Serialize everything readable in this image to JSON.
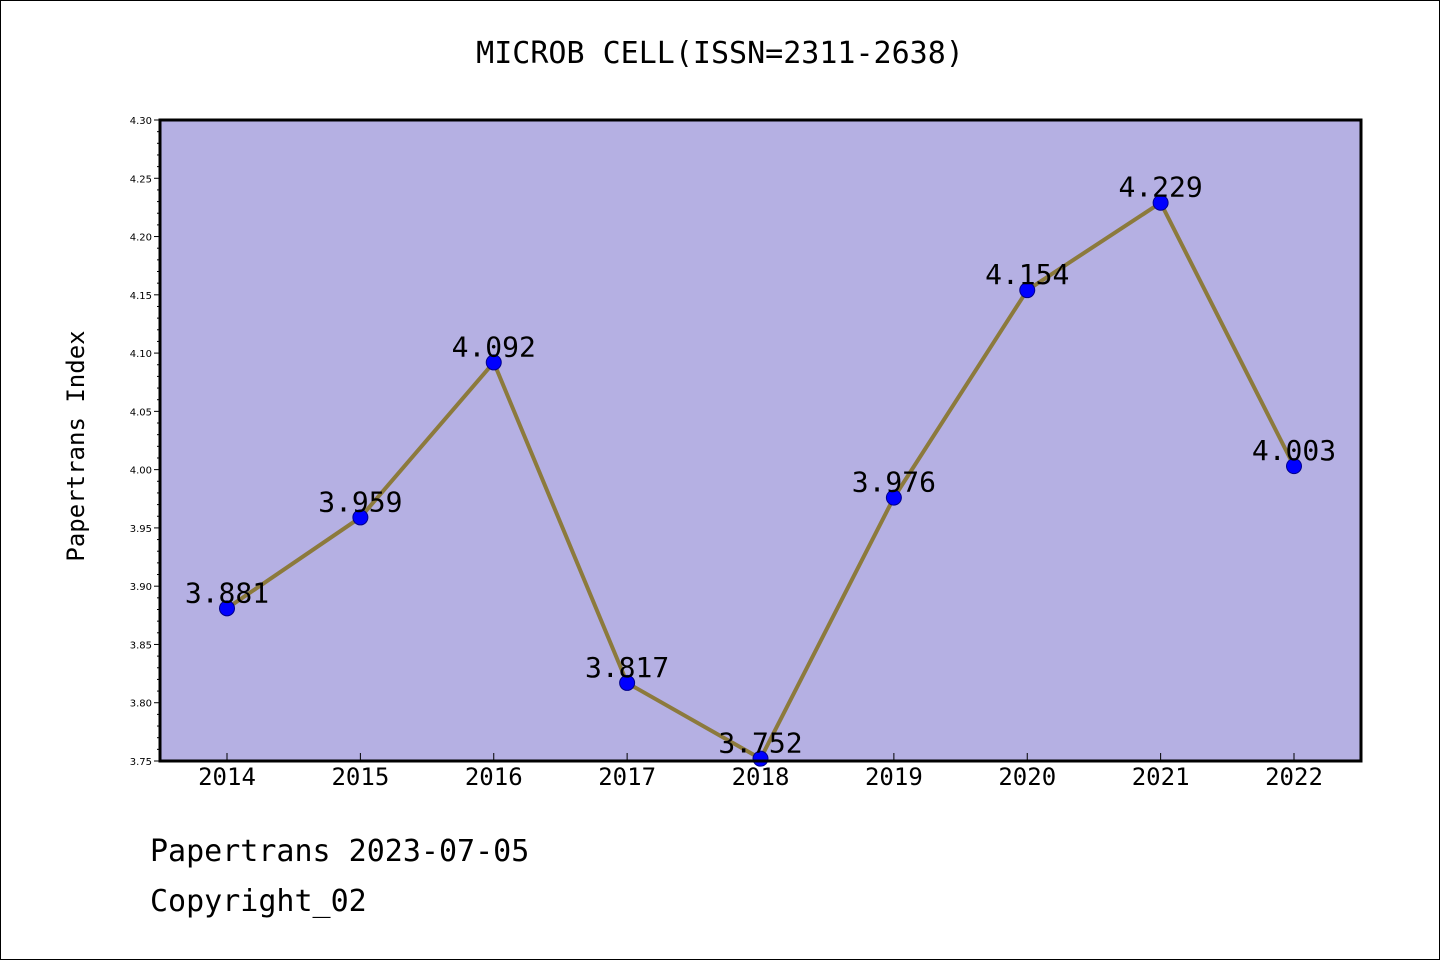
{
  "chart_data": {
    "type": "line",
    "title": "MICROB CELL(ISSN=2311-2638)",
    "ylabel": "Papertrans Index",
    "xlabel": "",
    "categories": [
      "2014",
      "2015",
      "2016",
      "2017",
      "2018",
      "2019",
      "2020",
      "2021",
      "2022"
    ],
    "values": [
      3.881,
      3.959,
      4.092,
      3.817,
      3.752,
      3.976,
      4.154,
      4.229,
      4.003
    ],
    "data_labels": [
      "3.881",
      "3.959",
      "4.092",
      "3.817",
      "3.752",
      "3.976",
      "4.154",
      "4.229",
      "4.003"
    ],
    "ylim": [
      3.75,
      4.3
    ],
    "yticks": [
      "3.75",
      "3.80",
      "3.85",
      "3.90",
      "3.95",
      "4.00",
      "4.05",
      "4.10",
      "4.15",
      "4.20",
      "4.25",
      "4.30"
    ],
    "grid": false,
    "legend": "none",
    "colors": {
      "plot_background": "#b5b0e3",
      "line": "#8c7a3c",
      "marker": "#0000ff",
      "marker_edge": "#00008b"
    }
  },
  "footer": {
    "line1": "Papertrans 2023-07-05",
    "line2": "Copyright_02"
  }
}
